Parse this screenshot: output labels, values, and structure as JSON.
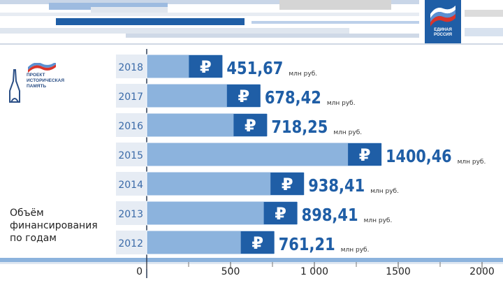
{
  "header": {
    "party_logo_text": "ЕДИНАЯ\nРОССИЯ",
    "project_logo_text": "ПРОЕКТ\nИСТОРИЧЕСКАЯ\nПАМЯТЬ"
  },
  "left_caption": "Объём\nфинансирования\nпо годам",
  "colors": {
    "bar": "#8cb3dd",
    "ruble_badge": "#1f5ea6",
    "value_text": "#1f5ea6",
    "year_text": "#3a6aa8",
    "axis_text": "#222222"
  },
  "chart_data": {
    "type": "bar",
    "orientation": "horizontal",
    "categories": [
      "2018",
      "2017",
      "2016",
      "2015",
      "2014",
      "2013",
      "2012"
    ],
    "values": [
      451.67,
      678.42,
      718.25,
      1400.46,
      938.41,
      898.41,
      761.21
    ],
    "value_labels": [
      "451,67",
      "678,42",
      "718,25",
      "1400,46",
      "938,41",
      "898,41",
      "761,21"
    ],
    "unit_label": "млн руб.",
    "currency_symbol": "₽",
    "xlim": [
      0,
      2150
    ],
    "xticks": [
      0,
      500,
      1000,
      1500,
      2000
    ],
    "xtick_labels": [
      "0",
      "500",
      "1 000",
      "1500",
      "2000"
    ],
    "title": "",
    "xlabel": "",
    "ylabel": "",
    "grid": false,
    "legend": "none"
  }
}
